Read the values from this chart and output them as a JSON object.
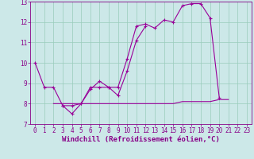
{
  "xlabel": "Windchill (Refroidissement éolien,°C)",
  "background_color": "#cce8e8",
  "line_color": "#990099",
  "xlim": [
    -0.5,
    23.5
  ],
  "ylim": [
    7,
    13
  ],
  "xticks": [
    0,
    1,
    2,
    3,
    4,
    5,
    6,
    7,
    8,
    9,
    10,
    11,
    12,
    13,
    14,
    15,
    16,
    17,
    18,
    19,
    20,
    21,
    22,
    23
  ],
  "yticks": [
    7,
    8,
    9,
    10,
    11,
    12,
    13
  ],
  "line1_x": [
    0,
    1,
    2,
    3,
    4,
    5,
    6,
    7,
    8,
    9,
    10,
    11,
    12,
    13,
    14,
    15,
    16,
    17,
    18,
    19,
    20
  ],
  "line1_y": [
    10.0,
    8.8,
    8.8,
    7.9,
    7.9,
    8.0,
    8.8,
    8.8,
    8.8,
    8.8,
    10.2,
    11.8,
    11.9,
    11.7,
    12.1,
    12.0,
    12.8,
    12.9,
    12.9,
    12.2,
    8.3
  ],
  "line2_x": [
    3,
    4,
    5,
    6,
    7,
    8,
    9,
    10,
    11,
    12
  ],
  "line2_y": [
    7.9,
    7.5,
    8.0,
    8.7,
    9.1,
    8.8,
    8.4,
    9.6,
    11.1,
    11.8
  ],
  "line3_x": [
    2,
    3,
    4,
    5,
    6,
    7,
    8,
    9,
    10,
    11,
    12,
    13,
    14,
    15,
    16,
    17,
    18,
    19,
    20,
    21
  ],
  "line3_y": [
    8.0,
    8.0,
    8.0,
    8.0,
    8.0,
    8.0,
    8.0,
    8.0,
    8.0,
    8.0,
    8.0,
    8.0,
    8.0,
    8.0,
    8.1,
    8.1,
    8.1,
    8.1,
    8.2,
    8.2
  ],
  "grid_color": "#99ccbb",
  "tick_fontsize": 5.5,
  "xlabel_fontsize": 6.5
}
